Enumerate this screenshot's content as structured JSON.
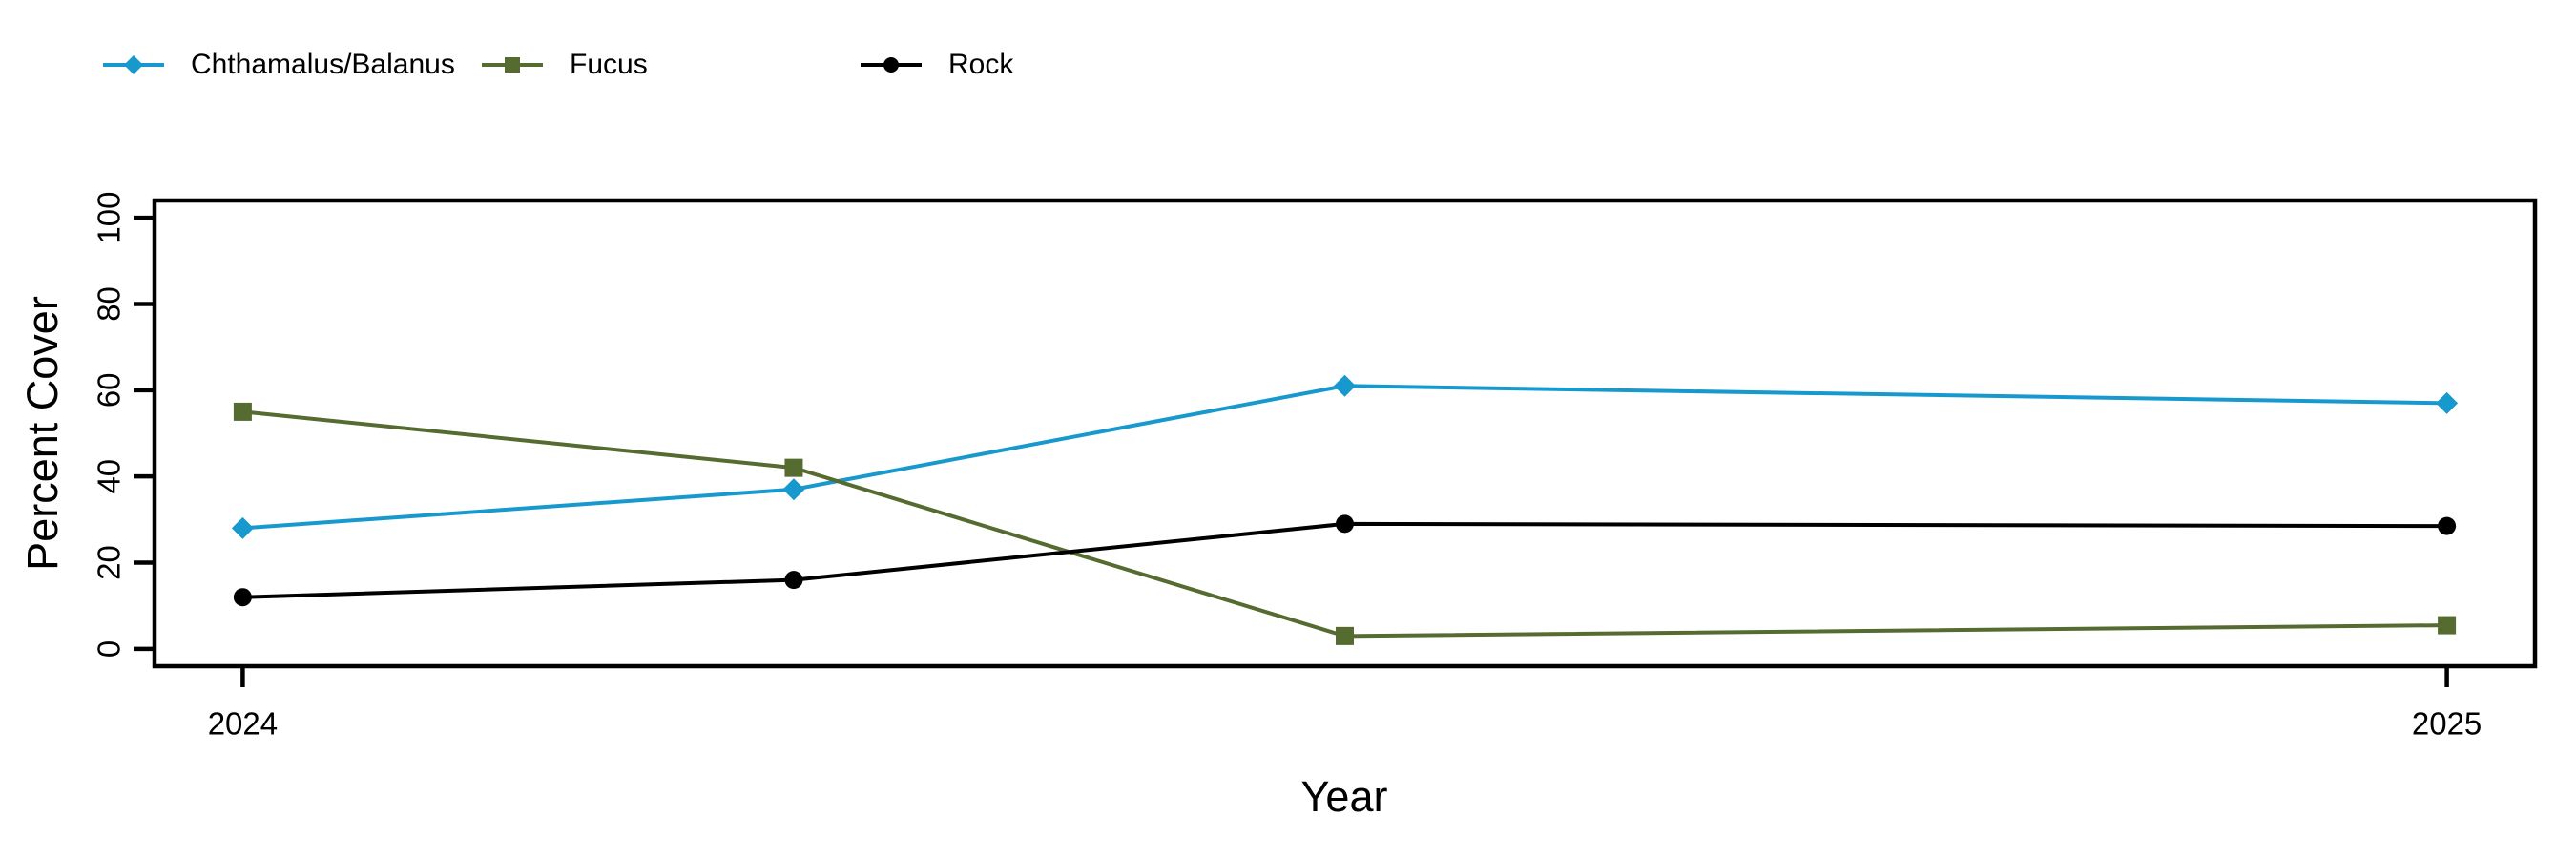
{
  "figure": {
    "background_color": "#ffffff",
    "axis_color": "#000000"
  },
  "chart_data": {
    "type": "line",
    "title": "",
    "xlabel": "Year",
    "ylabel": "Percent Cover",
    "x": [
      2024.0,
      2024.25,
      2024.5,
      2025.0
    ],
    "series": [
      {
        "name": "Chthamalus/Balanus",
        "color": "#1899CE",
        "marker": "diamond",
        "values": [
          28,
          37,
          61,
          57
        ]
      },
      {
        "name": "Fucus",
        "color": "#556B2F",
        "marker": "square",
        "values": [
          55,
          42,
          3,
          5.5
        ]
      },
      {
        "name": "Rock",
        "color": "#000000",
        "marker": "circle",
        "values": [
          12,
          16,
          29,
          28.5
        ]
      }
    ],
    "x_tick_values": [
      2024,
      2025
    ],
    "x_tick_labels": [
      "2024",
      "2025"
    ],
    "y_ticks": [
      0,
      20,
      40,
      60,
      80,
      100
    ],
    "xlim": [
      2024,
      2025
    ],
    "ylim": [
      0,
      100
    ],
    "grid": false,
    "legend_position": "top-left-horizontal"
  }
}
